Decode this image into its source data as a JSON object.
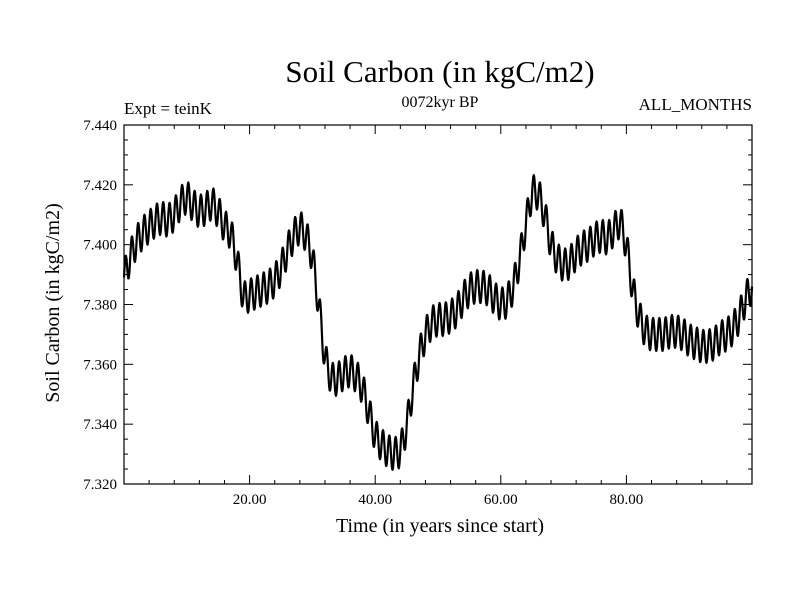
{
  "chart_data": {
    "type": "line",
    "title": "Soil Carbon (in kgC/m2)",
    "subtitle": "0072kyr BP",
    "left_annotation": "Expt = teinK",
    "right_annotation": "ALL_MONTHS",
    "xlabel": "Time (in years since start)",
    "ylabel": "Soil Carbon (in kgC/m2)",
    "xlim": [
      0,
      100
    ],
    "ylim": [
      7.32,
      7.44
    ],
    "x_ticks": [
      20,
      40,
      60,
      80
    ],
    "x_tick_labels": [
      "20.00",
      "40.00",
      "60.00",
      "80.00"
    ],
    "y_ticks": [
      7.32,
      7.34,
      7.36,
      7.38,
      7.4,
      7.42,
      7.44
    ],
    "y_tick_labels": [
      "7.320",
      "7.340",
      "7.360",
      "7.380",
      "7.400",
      "7.420",
      "7.440"
    ],
    "grid": false,
    "series": [
      {
        "name": "Soil Carbon",
        "seasonal_amplitude": 0.0055,
        "seasonal_period_years": 1,
        "x": [
          0,
          1,
          2,
          3,
          4,
          5,
          6,
          7,
          8,
          9,
          10,
          11,
          12,
          13,
          14,
          15,
          16,
          17,
          18,
          19,
          20,
          21,
          22,
          23,
          24,
          25,
          26,
          27,
          28,
          29,
          30,
          31,
          32,
          33,
          34,
          35,
          36,
          37,
          38,
          39,
          40,
          41,
          42,
          43,
          44,
          45,
          46,
          47,
          48,
          49,
          50,
          51,
          52,
          53,
          54,
          55,
          56,
          57,
          58,
          59,
          60,
          61,
          62,
          63,
          64,
          65,
          66,
          67,
          68,
          69,
          70,
          71,
          72,
          73,
          74,
          75,
          76,
          77,
          78,
          79,
          80,
          81,
          82,
          83,
          84,
          85,
          86,
          87,
          88,
          89,
          90,
          91,
          92,
          93,
          94,
          95,
          96,
          97,
          98,
          99,
          100
        ],
        "values": [
          7.389,
          7.396,
          7.401,
          7.404,
          7.406,
          7.408,
          7.409,
          7.408,
          7.41,
          7.414,
          7.416,
          7.413,
          7.411,
          7.412,
          7.414,
          7.411,
          7.406,
          7.404,
          7.395,
          7.382,
          7.383,
          7.384,
          7.385,
          7.386,
          7.388,
          7.392,
          7.398,
          7.403,
          7.406,
          7.403,
          7.396,
          7.38,
          7.362,
          7.355,
          7.355,
          7.357,
          7.358,
          7.356,
          7.352,
          7.344,
          7.336,
          7.333,
          7.331,
          7.33,
          7.331,
          7.339,
          7.352,
          7.363,
          7.37,
          7.374,
          7.375,
          7.375,
          7.376,
          7.378,
          7.382,
          7.385,
          7.386,
          7.386,
          7.385,
          7.382,
          7.38,
          7.381,
          7.386,
          7.395,
          7.407,
          7.418,
          7.417,
          7.41,
          7.4,
          7.395,
          7.393,
          7.394,
          7.397,
          7.399,
          7.4,
          7.402,
          7.403,
          7.402,
          7.405,
          7.408,
          7.4,
          7.385,
          7.376,
          7.371,
          7.37,
          7.37,
          7.37,
          7.371,
          7.371,
          7.37,
          7.368,
          7.367,
          7.366,
          7.366,
          7.367,
          7.369,
          7.37,
          7.372,
          7.376,
          7.382,
          7.386
        ]
      }
    ]
  }
}
